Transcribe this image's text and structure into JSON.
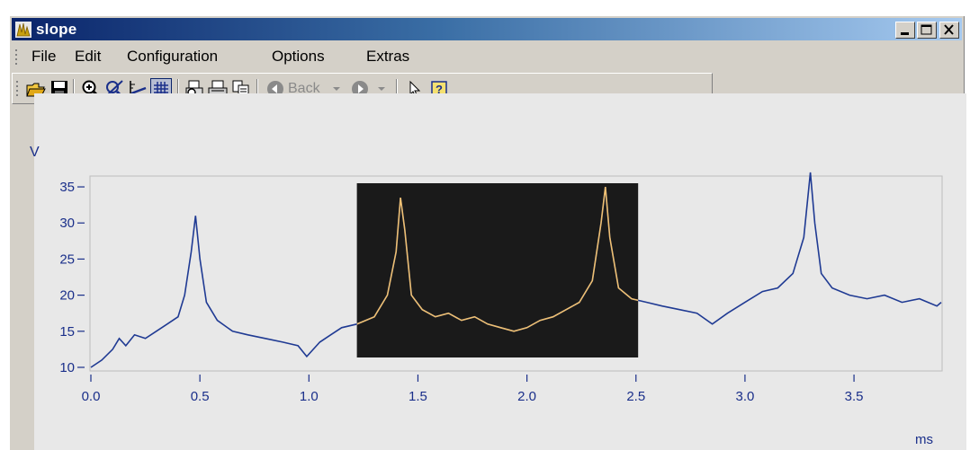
{
  "window": {
    "title": "slope"
  },
  "menu": [
    "File",
    "Edit",
    "Configuration",
    "Options",
    "Extras"
  ],
  "toolbar": {
    "back_label": "Back",
    "help_label": "?"
  },
  "icons": [
    "folder-open-icon",
    "save-icon",
    "zoom-in-icon",
    "zoom-reset-icon",
    "axis-scale-icon",
    "grid-icon",
    "print-preview-icon",
    "print-icon",
    "copy-icon",
    "back-arrow-icon",
    "dropdown-icon",
    "forward-arrow-icon",
    "dropdown-icon",
    "pointer-icon",
    "help-icon"
  ],
  "chart_data": {
    "type": "line",
    "yunit": "V",
    "xunit": "ms",
    "xlim": [
      0,
      3.9
    ],
    "ylim": [
      9.5,
      36.5
    ],
    "xticks": [
      "0.0",
      "0.5",
      "1.0",
      "1.5",
      "2.0",
      "2.5",
      "3.0",
      "3.5"
    ],
    "yticks": [
      "10",
      "15",
      "20",
      "25",
      "30",
      "35"
    ],
    "highlight_range": [
      1.22,
      2.51
    ],
    "line_color": "#1f3a93",
    "highlight_line_color": "#f0c070",
    "highlight_bg": "#1a1a1a",
    "series": [
      {
        "x": [
          0.0,
          0.05,
          0.1,
          0.13,
          0.16,
          0.2,
          0.25,
          0.3,
          0.35,
          0.4,
          0.43,
          0.46,
          0.48,
          0.5,
          0.53,
          0.58,
          0.65,
          0.72,
          0.8,
          0.88,
          0.95,
          0.99,
          1.05,
          1.1,
          1.15,
          1.22,
          1.3,
          1.36,
          1.4,
          1.42,
          1.44,
          1.47,
          1.52,
          1.58,
          1.64,
          1.7,
          1.76,
          1.82,
          1.88,
          1.94,
          2.0,
          2.06,
          2.12,
          2.18,
          2.24,
          2.3,
          2.34,
          2.36,
          2.38,
          2.42,
          2.48,
          2.55,
          2.62,
          2.7,
          2.78,
          2.85,
          2.92,
          3.0,
          3.08,
          3.15,
          3.22,
          3.27,
          3.3,
          3.32,
          3.35,
          3.4,
          3.48,
          3.56,
          3.64,
          3.72,
          3.8,
          3.88,
          3.9
        ],
        "y": [
          10,
          11,
          12.5,
          14,
          13,
          14.5,
          14,
          15,
          16,
          17,
          20,
          26,
          31,
          25,
          19,
          16.5,
          15,
          14.5,
          14,
          13.5,
          13,
          11.5,
          13.5,
          14.5,
          15.5,
          16,
          17,
          20,
          26,
          33.5,
          29,
          20,
          18,
          17,
          17.5,
          16.5,
          17,
          16,
          15.5,
          15,
          15.5,
          16.5,
          17,
          18,
          19,
          22,
          30,
          35,
          28,
          21,
          19.5,
          19,
          18.5,
          18,
          17.5,
          16,
          17.5,
          19,
          20.5,
          21,
          23,
          28,
          37,
          30,
          23,
          21,
          20,
          19.5,
          20,
          19,
          19.5,
          18.5,
          19
        ]
      }
    ]
  }
}
